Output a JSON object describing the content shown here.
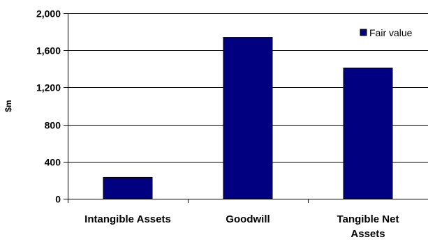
{
  "chart_data": {
    "type": "bar",
    "categories": [
      "Intangible Assets",
      "Goodwill",
      "Tangible Net Assets"
    ],
    "category_lines": [
      [
        "Intangible Assets"
      ],
      [
        "Goodwill"
      ],
      [
        "Tangible Net",
        "Assets"
      ]
    ],
    "series": [
      {
        "name": "Fair value",
        "values": [
          230,
          1740,
          1410
        ],
        "color": "#000080"
      }
    ],
    "yticks": [
      0,
      400,
      800,
      1200,
      1600,
      2000
    ],
    "ytick_labels": [
      "0",
      "400",
      "800",
      "1,200",
      "1,600",
      "2,000"
    ],
    "ylim": [
      0,
      2000
    ],
    "ylabel": "$m",
    "xlabel": "",
    "title": "",
    "grid": "horizontal",
    "legend_position": "top-right"
  }
}
